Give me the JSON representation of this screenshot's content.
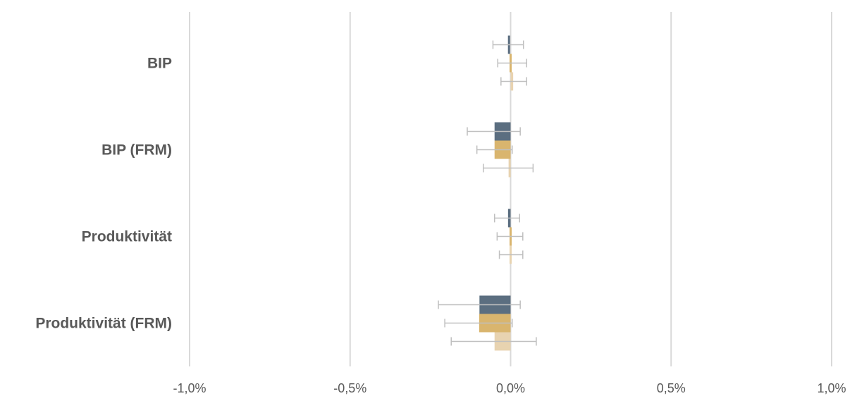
{
  "chart_data": {
    "type": "bar",
    "orientation": "horizontal",
    "categories": [
      "BIP",
      "BIP (FRM)",
      "Produktivität",
      "Produktivität (FRM)"
    ],
    "series": [
      {
        "color": "#5b6e80",
        "values": [
          -0.005,
          -0.05,
          -0.008,
          -0.097
        ],
        "err_low": [
          -0.055,
          -0.135,
          -0.05,
          -0.225
        ],
        "err_high": [
          0.04,
          0.03,
          0.028,
          0.03
        ]
      },
      {
        "color": "#d9b56e",
        "values": [
          0.0,
          -0.05,
          0.0,
          -0.098
        ],
        "err_low": [
          -0.04,
          -0.105,
          -0.042,
          -0.205
        ],
        "err_high": [
          0.05,
          0.005,
          0.038,
          0.005
        ]
      },
      {
        "color": "#e8d3b0",
        "values": [
          0.008,
          -0.003,
          0.0,
          -0.05
        ],
        "err_low": [
          -0.03,
          -0.085,
          -0.035,
          -0.185
        ],
        "err_high": [
          0.05,
          0.07,
          0.038,
          0.08
        ]
      }
    ],
    "xlim": [
      -1.0,
      1.0
    ],
    "xticks": [
      -1.0,
      -0.5,
      0.0,
      0.5,
      1.0
    ],
    "xtick_labels": [
      "-1,0%",
      "-0,5%",
      "0,0%",
      "0,5%",
      "1,0%"
    ],
    "grid": "vertical",
    "error_bar_color": "#bfbfbf",
    "legend": "none"
  }
}
